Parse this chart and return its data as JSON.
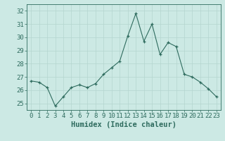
{
  "x": [
    0,
    1,
    2,
    3,
    4,
    5,
    6,
    7,
    8,
    9,
    10,
    11,
    12,
    13,
    14,
    15,
    16,
    17,
    18,
    19,
    20,
    21,
    22,
    23
  ],
  "y": [
    26.7,
    26.6,
    26.2,
    24.8,
    25.5,
    26.2,
    26.4,
    26.2,
    26.5,
    27.2,
    27.7,
    28.2,
    30.1,
    31.8,
    29.7,
    31.0,
    28.7,
    29.6,
    29.3,
    27.2,
    27.0,
    26.6,
    26.1,
    25.5
  ],
  "bg_color": "#cce9e4",
  "line_color": "#2e6b5e",
  "marker_color": "#2e6b5e",
  "grid_color": "#b5d5cf",
  "xlabel": "Humidex (Indice chaleur)",
  "ylim": [
    24.5,
    32.5
  ],
  "yticks": [
    25,
    26,
    27,
    28,
    29,
    30,
    31,
    32
  ],
  "xticks": [
    0,
    1,
    2,
    3,
    4,
    5,
    6,
    7,
    8,
    9,
    10,
    11,
    12,
    13,
    14,
    15,
    16,
    17,
    18,
    19,
    20,
    21,
    22,
    23
  ],
  "tick_fontsize": 6.5,
  "xlabel_fontsize": 7.5,
  "axis_text_color": "#2e6b5e"
}
